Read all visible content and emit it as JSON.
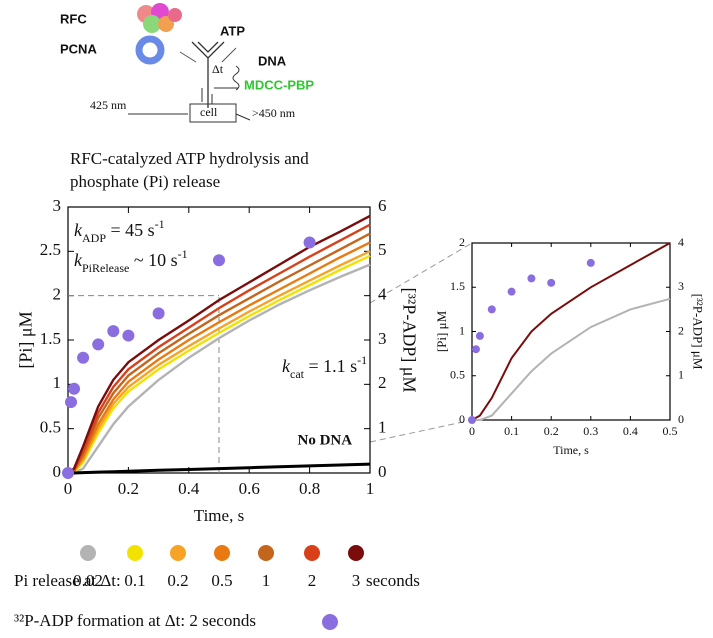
{
  "diagram": {
    "rfc": "RFC",
    "atp": "ATP",
    "pcna": "PCNA",
    "dna": "DNA",
    "dt": "Δt",
    "mdcc": "MDCC-PBP",
    "nm_in": "425 nm",
    "cell": "cell",
    "nm_out": ">450 nm"
  },
  "chart_data": [
    {
      "type": "line",
      "title": [
        "RFC-catalyzed ATP hydrolysis and",
        "phosphate (Pi) release"
      ],
      "xlabel": "Time, s",
      "ylabel": "[Pi] μM",
      "y2label": "[³²P-ADP] μM",
      "xlim": [
        0,
        1
      ],
      "xticks": [
        0,
        0.2,
        0.4,
        0.6,
        0.8,
        1
      ],
      "ylim": [
        0,
        3
      ],
      "yticks": [
        0,
        0.5,
        1,
        1.5,
        2,
        2.5,
        3
      ],
      "y2lim": [
        0,
        6
      ],
      "y2ticks": [
        0,
        1,
        2,
        3,
        4,
        5,
        6
      ],
      "guide_x": 0.5,
      "guide_y": 2,
      "x": [
        0,
        0.02,
        0.05,
        0.1,
        0.15,
        0.2,
        0.3,
        0.4,
        0.5,
        0.6,
        0.7,
        0.8,
        0.9,
        1
      ],
      "series": [
        {
          "name": "0.02",
          "color": "#b3b3b3",
          "values": [
            0,
            0,
            0.05,
            0.3,
            0.55,
            0.75,
            1.05,
            1.3,
            1.52,
            1.72,
            1.9,
            2.06,
            2.21,
            2.35
          ]
        },
        {
          "name": "0.1",
          "color": "#f2e200",
          "values": [
            0,
            0.01,
            0.12,
            0.45,
            0.73,
            0.92,
            1.17,
            1.38,
            1.58,
            1.77,
            1.95,
            2.12,
            2.29,
            2.45
          ]
        },
        {
          "name": "0.2",
          "color": "#f7a325",
          "values": [
            0,
            0.02,
            0.15,
            0.5,
            0.78,
            0.97,
            1.22,
            1.43,
            1.63,
            1.82,
            2,
            2.17,
            2.34,
            2.5
          ]
        },
        {
          "name": "0.5",
          "color": "#e97a12",
          "values": [
            0,
            0.02,
            0.18,
            0.55,
            0.83,
            1.03,
            1.28,
            1.5,
            1.7,
            1.89,
            2.07,
            2.25,
            2.43,
            2.6
          ]
        },
        {
          "name": "1",
          "color": "#c4651c",
          "values": [
            0,
            0.03,
            0.22,
            0.62,
            0.9,
            1.1,
            1.35,
            1.57,
            1.78,
            1.97,
            2.16,
            2.34,
            2.52,
            2.7
          ]
        },
        {
          "name": "2",
          "color": "#d9401a",
          "values": [
            0,
            0.04,
            0.25,
            0.68,
            0.97,
            1.17,
            1.42,
            1.64,
            1.86,
            2.06,
            2.25,
            2.44,
            2.62,
            2.8
          ]
        },
        {
          "name": "3",
          "color": "#7a0c0c",
          "values": [
            0,
            0.05,
            0.3,
            0.75,
            1.05,
            1.25,
            1.5,
            1.72,
            1.95,
            2.15,
            2.35,
            2.55,
            2.72,
            2.9
          ]
        }
      ],
      "no_dna": {
        "name": "No DNA",
        "color": "#000000",
        "values": [
          0,
          0,
          0.005,
          0.01,
          0.015,
          0.02,
          0.03,
          0.04,
          0.05,
          0.06,
          0.07,
          0.08,
          0.09,
          0.1
        ]
      },
      "adp": {
        "type": "scatter",
        "name": "³²P-ADP formation at Δt: 2 seconds",
        "color": "#8a6ee0",
        "axis": "y2",
        "x": [
          0,
          0.01,
          0.02,
          0.05,
          0.1,
          0.15,
          0.2,
          0.3,
          0.5,
          0.8
        ],
        "values": [
          0,
          1.6,
          1.9,
          2.6,
          2.9,
          3.2,
          3.1,
          3.6,
          4.8,
          5.2
        ]
      },
      "annotations": [
        {
          "k": "k",
          "sub": "ADP",
          "text": " = 45 s",
          "sup": "-1"
        },
        {
          "k": "k",
          "sub": "PiRelease",
          "text": " ~ 10 s",
          "sup": "-1"
        },
        {
          "k": "k",
          "sub": "cat",
          "text": " = 1.1 s",
          "sup": "-1"
        }
      ],
      "legend_title": "Pi release at Δt:",
      "legend_unit": "seconds"
    },
    {
      "type": "line",
      "xlabel": "Time, s",
      "ylabel": "[Pi] μM",
      "y2label": "[³²P-ADP] μM",
      "xlim": [
        0,
        0.5
      ],
      "xticks": [
        0,
        0.1,
        0.2,
        0.3,
        0.4,
        0.5
      ],
      "ylim": [
        0,
        2
      ],
      "yticks": [
        0,
        0.5,
        1,
        1.5,
        2
      ],
      "y2lim": [
        0,
        4
      ],
      "y2ticks": [
        0,
        1,
        2,
        3,
        4
      ],
      "x": [
        0,
        0.02,
        0.05,
        0.1,
        0.15,
        0.2,
        0.3,
        0.4,
        0.5
      ],
      "series": [
        {
          "color": "#b3b3b3",
          "values": [
            0,
            0,
            0.05,
            0.3,
            0.55,
            0.75,
            1.05,
            1.25,
            1.37
          ]
        },
        {
          "color": "#7a0c0c",
          "values": [
            0,
            0.05,
            0.25,
            0.7,
            1,
            1.2,
            1.5,
            1.75,
            2
          ]
        }
      ],
      "adp": {
        "type": "scatter",
        "color": "#8a6ee0",
        "axis": "y2",
        "x": [
          0,
          0.01,
          0.02,
          0.05,
          0.1,
          0.15,
          0.2,
          0.3
        ],
        "values": [
          0,
          1.6,
          1.9,
          2.5,
          2.9,
          3.2,
          3.1,
          3.55
        ]
      }
    }
  ]
}
